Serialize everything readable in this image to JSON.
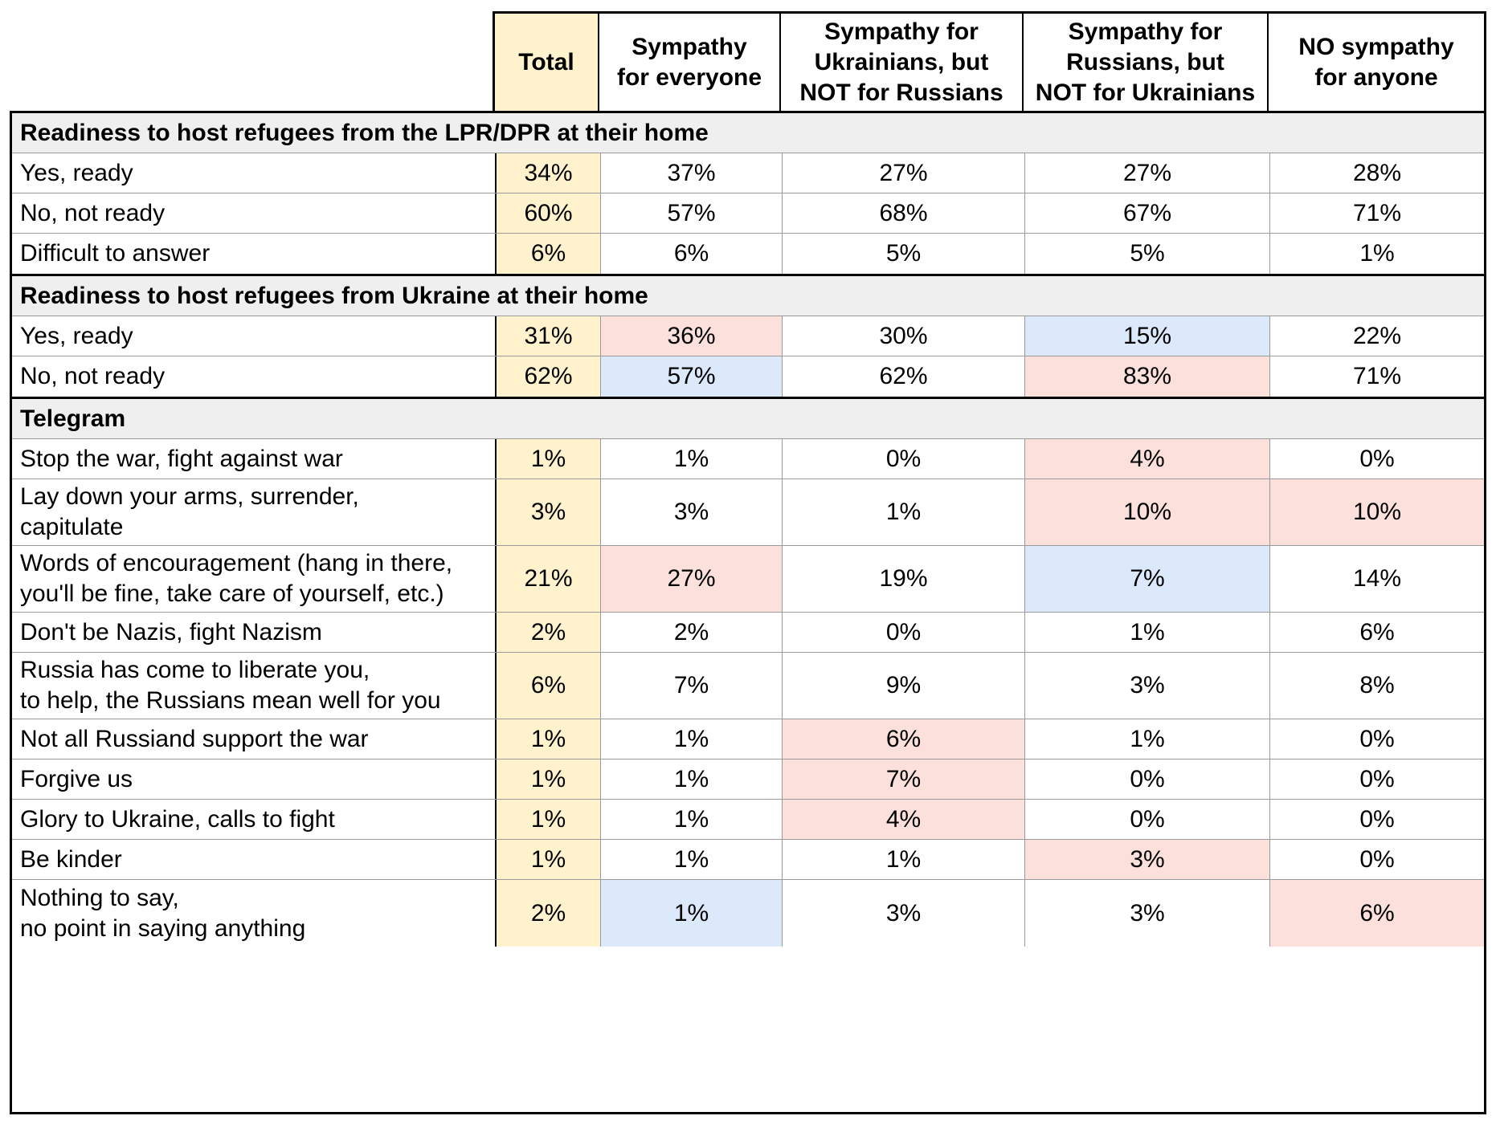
{
  "columns": [
    "Total",
    "Sympathy\nfor everyone",
    "Sympathy for\nUkrainians, but\nNOT for Russians",
    "Sympathy for\nRussians, but\nNOT for Ukrainians",
    "NO sympathy\nfor anyone"
  ],
  "colors": {
    "total": "#fff2cc",
    "red": "#fce0db",
    "blue": "#dbe9fb",
    "section": "#efefef"
  },
  "sections": [
    {
      "title": "Readiness to host refugees from the LPR/DPR at their home",
      "rows": [
        {
          "label": "Yes, ready",
          "values": [
            "34%",
            "37%",
            "27%",
            "27%",
            "28%"
          ],
          "highlight": [
            "",
            "",
            "",
            "",
            ""
          ]
        },
        {
          "label": "No, not ready",
          "values": [
            "60%",
            "57%",
            "68%",
            "67%",
            "71%"
          ],
          "highlight": [
            "",
            "",
            "",
            "",
            ""
          ]
        },
        {
          "label": "Difficult to answer",
          "values": [
            "6%",
            "6%",
            "5%",
            "5%",
            "1%"
          ],
          "highlight": [
            "",
            "",
            "",
            "",
            ""
          ]
        }
      ]
    },
    {
      "title": "Readiness to host refugees from Ukraine at their home",
      "rows": [
        {
          "label": "Yes, ready",
          "values": [
            "31%",
            "36%",
            "30%",
            "15%",
            "22%"
          ],
          "highlight": [
            "",
            "red",
            "",
            "blue",
            ""
          ]
        },
        {
          "label": "No, not ready",
          "values": [
            "62%",
            "57%",
            "62%",
            "83%",
            "71%"
          ],
          "highlight": [
            "",
            "blue",
            "",
            "red",
            ""
          ]
        }
      ]
    },
    {
      "title": "Telegram",
      "rows": [
        {
          "label": "Stop the war, fight against war",
          "values": [
            "1%",
            "1%",
            "0%",
            "4%",
            "0%"
          ],
          "highlight": [
            "",
            "",
            "",
            "red",
            ""
          ]
        },
        {
          "label": "Lay down your arms, surrender,\ncapitulate",
          "values": [
            "3%",
            "3%",
            "1%",
            "10%",
            "10%"
          ],
          "highlight": [
            "",
            "",
            "",
            "red",
            "red"
          ]
        },
        {
          "label": "Words of encouragement (hang in there,\nyou'll be fine, take care of yourself, etc.)",
          "values": [
            "21%",
            "27%",
            "19%",
            "7%",
            "14%"
          ],
          "highlight": [
            "",
            "red",
            "",
            "blue",
            ""
          ]
        },
        {
          "label": "Don't be Nazis, fight Nazism",
          "values": [
            "2%",
            "2%",
            "0%",
            "1%",
            "6%"
          ],
          "highlight": [
            "",
            "",
            "",
            "",
            ""
          ]
        },
        {
          "label": "Russia has come to liberate you,\nto help, the Russians mean well for you",
          "values": [
            "6%",
            "7%",
            "9%",
            "3%",
            "8%"
          ],
          "highlight": [
            "",
            "",
            "",
            "",
            ""
          ]
        },
        {
          "label": "Not all Russiand support the war",
          "values": [
            "1%",
            "1%",
            "6%",
            "1%",
            "0%"
          ],
          "highlight": [
            "",
            "",
            "red",
            "",
            ""
          ]
        },
        {
          "label": "Forgive us",
          "values": [
            "1%",
            "1%",
            "7%",
            "0%",
            "0%"
          ],
          "highlight": [
            "",
            "",
            "red",
            "",
            ""
          ]
        },
        {
          "label": "Glory to Ukraine, calls to fight",
          "values": [
            "1%",
            "1%",
            "4%",
            "0%",
            "0%"
          ],
          "highlight": [
            "",
            "",
            "red",
            "",
            ""
          ]
        },
        {
          "label": "Be kinder",
          "values": [
            "1%",
            "1%",
            "1%",
            "3%",
            "0%"
          ],
          "highlight": [
            "",
            "",
            "",
            "red",
            ""
          ]
        },
        {
          "label": "Nothing to say,\nno point in saying anything",
          "values": [
            "2%",
            "1%",
            "3%",
            "3%",
            "6%"
          ],
          "highlight": [
            "",
            "blue",
            "",
            "",
            "red"
          ]
        }
      ]
    }
  ]
}
